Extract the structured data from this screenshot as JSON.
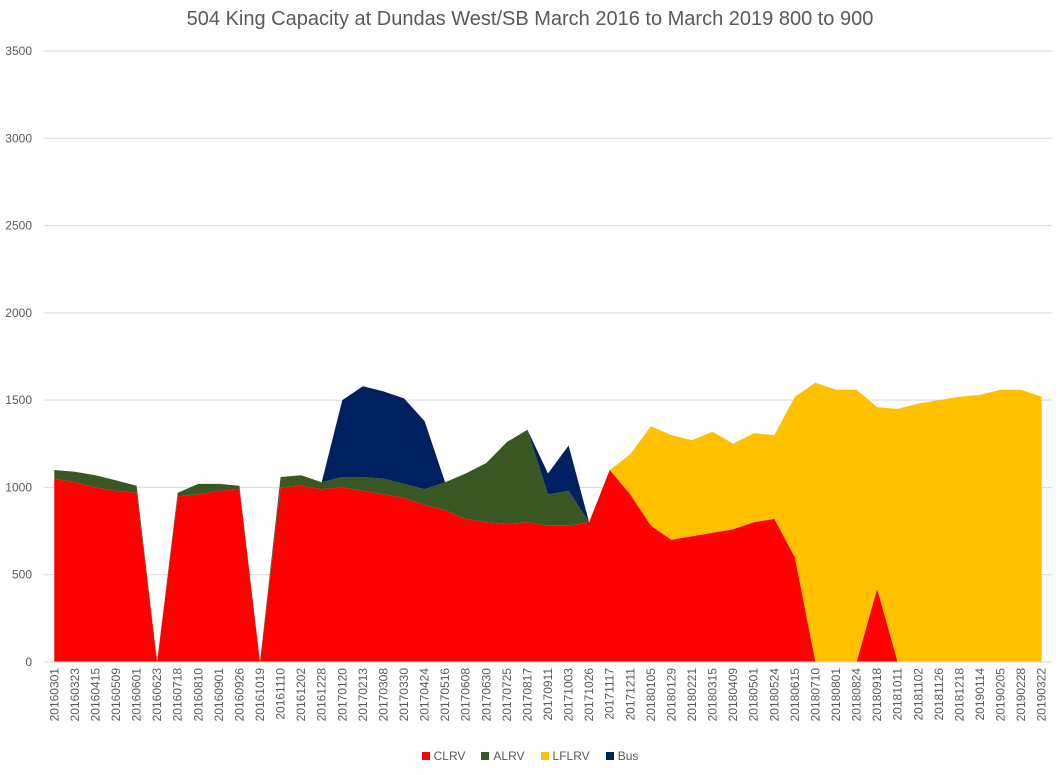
{
  "chart_data": {
    "type": "area",
    "stacked": true,
    "title": "504 King Capacity at Dundas West/SB March 2016 to March 2019  800 to 900",
    "xlabel": "",
    "ylabel": "",
    "ylim": [
      0,
      3500
    ],
    "yticks": [
      0,
      500,
      1000,
      1500,
      2000,
      2500,
      3000,
      3500
    ],
    "grid": true,
    "legend_position": "bottom",
    "x_tick_labels": [
      "20160301",
      "20160323",
      "20160415",
      "20160509",
      "20160601",
      "20160623",
      "20160718",
      "20160810",
      "20160901",
      "20160926",
      "20161019",
      "20161110",
      "20161202",
      "20161228",
      "20170120",
      "20170213",
      "20170308",
      "20170330",
      "20170424",
      "20170516",
      "20170608",
      "20170630",
      "20170725",
      "20170817",
      "20170911",
      "20171003",
      "20171026",
      "20171117",
      "20171211",
      "20180105",
      "20180129",
      "20180221",
      "20180315",
      "20180409",
      "20180501",
      "20180524",
      "20180615",
      "20180710",
      "20180801",
      "20180824",
      "20180918",
      "20181011",
      "20181102",
      "20181126",
      "20181218",
      "20190114",
      "20190205",
      "20190228",
      "20190322"
    ],
    "series": [
      {
        "name": "CLRV",
        "color": "#ff0000",
        "values": [
          1050,
          1030,
          1000,
          980,
          970,
          0,
          950,
          960,
          980,
          990,
          0,
          1000,
          1010,
          990,
          1000,
          980,
          960,
          940,
          900,
          870,
          820,
          800,
          790,
          800,
          780,
          780,
          800,
          1100,
          960,
          780,
          700,
          720,
          740,
          760,
          800,
          820,
          600,
          0,
          0,
          0,
          420,
          0,
          0,
          0,
          0,
          0,
          0,
          0,
          0
        ]
      },
      {
        "name": "ALRV",
        "color": "#385723",
        "values": [
          50,
          60,
          70,
          60,
          40,
          0,
          20,
          60,
          40,
          20,
          0,
          60,
          60,
          40,
          60,
          80,
          90,
          80,
          90,
          160,
          260,
          340,
          470,
          530,
          180,
          200,
          0,
          0,
          0,
          0,
          0,
          0,
          0,
          0,
          0,
          0,
          0,
          0,
          0,
          0,
          0,
          0,
          0,
          0,
          0,
          0,
          0,
          0,
          0
        ]
      },
      {
        "name": "LFLRV",
        "color": "#ffc000",
        "values": [
          0,
          0,
          0,
          0,
          0,
          0,
          0,
          0,
          0,
          0,
          0,
          0,
          0,
          0,
          0,
          0,
          0,
          0,
          0,
          0,
          0,
          0,
          0,
          0,
          0,
          0,
          0,
          0,
          230,
          570,
          600,
          550,
          580,
          490,
          510,
          480,
          920,
          1600,
          1560,
          1560,
          1040,
          1450,
          1480,
          1500,
          1520,
          1530,
          1560,
          1560,
          1520
        ]
      },
      {
        "name": "Bus",
        "color": "#002060",
        "values": [
          0,
          0,
          0,
          0,
          0,
          0,
          0,
          0,
          0,
          0,
          0,
          0,
          0,
          0,
          440,
          520,
          500,
          490,
          390,
          0,
          0,
          0,
          0,
          0,
          120,
          260,
          0,
          0,
          0,
          0,
          0,
          0,
          0,
          0,
          0,
          0,
          0,
          0,
          0,
          0,
          0,
          0,
          0,
          0,
          0,
          0,
          0,
          0,
          0
        ]
      }
    ]
  }
}
